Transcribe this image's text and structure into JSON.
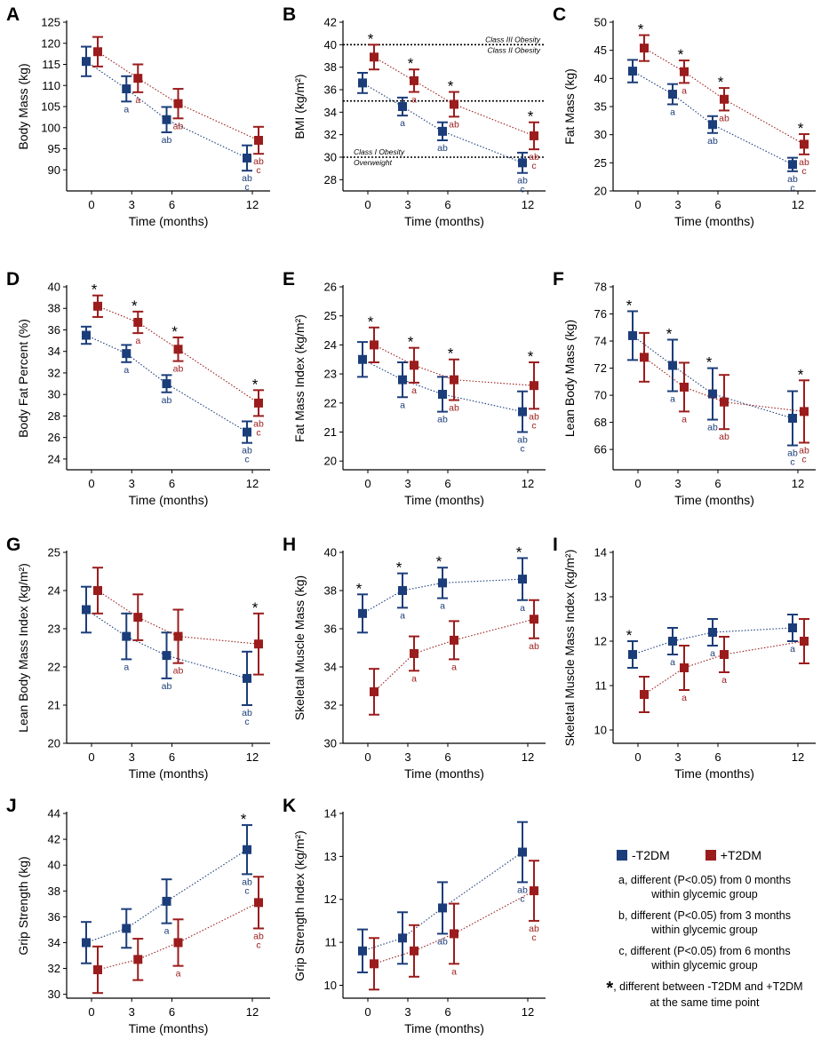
{
  "colors": {
    "noT2DM": "#1b3d7a",
    "T2DM": "#9b1c1c"
  },
  "legend": {
    "series": [
      "-T2DM",
      "+T2DM"
    ],
    "notes": [
      {
        "line1": "a, different (P<0.05) from 0 months",
        "line2": "within glycemic group"
      },
      {
        "line1": "b, different (P<0.05) from 3 months",
        "line2": "within glycemic group"
      },
      {
        "line1": "c, different (P<0.05) from 6 months",
        "line2": "within glycemic group"
      }
    ],
    "star_symbol": "*",
    "star_line1": ", different between -T2DM and +T2DM",
    "star_line2": "at the same time point"
  },
  "chart_data": [
    {
      "panel": "A",
      "type": "line",
      "xlabel": "Time (months)",
      "ylabel": "Body Mass (kg)",
      "x": [
        0,
        3,
        6,
        12
      ],
      "xticks": [
        "0",
        "3",
        "6",
        "12"
      ],
      "ylim": [
        85,
        125
      ],
      "yticks": [
        90,
        95,
        100,
        105,
        110,
        115,
        120,
        125
      ],
      "series": [
        {
          "name": "-T2DM",
          "values": [
            115.7,
            109.2,
            101.9,
            92.8
          ],
          "errors": [
            3.5,
            3.0,
            3.0,
            3.0
          ],
          "letters": [
            "",
            "a",
            "ab",
            "ab\nc"
          ],
          "stars": [
            false,
            false,
            false,
            false
          ]
        },
        {
          "name": "+T2DM",
          "values": [
            118.0,
            111.7,
            105.7,
            97.0
          ],
          "errors": [
            3.5,
            3.3,
            3.5,
            3.2
          ],
          "letters": [
            "",
            "a",
            "ab",
            "ab\nc"
          ],
          "stars": [
            false,
            false,
            false,
            false
          ]
        }
      ]
    },
    {
      "panel": "B",
      "type": "line",
      "xlabel": "Time (months)",
      "ylabel": "BMI (kg/m²)",
      "x": [
        0,
        3,
        6,
        12
      ],
      "xticks": [
        "0",
        "3",
        "6",
        "12"
      ],
      "ylim": [
        27,
        42
      ],
      "yticks": [
        28,
        30,
        32,
        34,
        36,
        38,
        40,
        42
      ],
      "reference_lines": [
        {
          "y": 40,
          "label_above": "Class III Obesity",
          "label_below": "Class II Obesity"
        },
        {
          "y": 35,
          "label_above": "",
          "label_below": ""
        },
        {
          "y": 30,
          "label_above": "Class I Obesity",
          "label_below": "Overweight"
        }
      ],
      "series": [
        {
          "name": "-T2DM",
          "values": [
            36.6,
            34.5,
            32.3,
            29.5
          ],
          "errors": [
            0.9,
            0.8,
            0.8,
            0.9
          ],
          "letters": [
            "",
            "a",
            "ab",
            "ab\nc"
          ],
          "stars": [
            true,
            true,
            true,
            true
          ]
        },
        {
          "name": "+T2DM",
          "values": [
            38.9,
            36.8,
            34.7,
            31.9
          ],
          "errors": [
            1.1,
            1.0,
            1.1,
            1.2
          ],
          "letters": [
            "",
            "a",
            "ab",
            "ab\nc"
          ],
          "stars": [
            false,
            false,
            false,
            false
          ]
        }
      ]
    },
    {
      "panel": "C",
      "type": "line",
      "xlabel": "Time (months)",
      "ylabel": "Fat Mass (kg)",
      "x": [
        0,
        3,
        6,
        12
      ],
      "xticks": [
        "0",
        "3",
        "6",
        "12"
      ],
      "ylim": [
        20,
        50
      ],
      "yticks": [
        20,
        25,
        30,
        35,
        40,
        45,
        50
      ],
      "series": [
        {
          "name": "-T2DM",
          "values": [
            41.3,
            37.2,
            31.8,
            24.7
          ],
          "errors": [
            2.0,
            1.8,
            1.5,
            1.2
          ],
          "letters": [
            "",
            "a",
            "ab",
            "ab\nc"
          ],
          "stars": [
            true,
            true,
            true,
            true
          ]
        },
        {
          "name": "+T2DM",
          "values": [
            45.4,
            41.2,
            36.3,
            28.3
          ],
          "errors": [
            2.3,
            2.0,
            2.0,
            1.8
          ],
          "letters": [
            "",
            "a",
            "ab",
            "ab\nc"
          ],
          "stars": [
            false,
            false,
            false,
            false
          ]
        }
      ]
    },
    {
      "panel": "D",
      "type": "line",
      "xlabel": "Time (months)",
      "ylabel": "Body Fat Percent (%)",
      "x": [
        0,
        3,
        6,
        12
      ],
      "xticks": [
        "0",
        "3",
        "6",
        "12"
      ],
      "ylim": [
        23,
        40
      ],
      "yticks": [
        24,
        26,
        28,
        30,
        32,
        34,
        36,
        38,
        40
      ],
      "series": [
        {
          "name": "-T2DM",
          "values": [
            35.5,
            33.8,
            31.0,
            26.5
          ],
          "errors": [
            0.8,
            0.8,
            0.8,
            1.0
          ],
          "letters": [
            "",
            "a",
            "ab",
            "ab\nc"
          ],
          "stars": [
            true,
            true,
            true,
            true
          ]
        },
        {
          "name": "+T2DM",
          "values": [
            38.2,
            36.7,
            34.2,
            29.2
          ],
          "errors": [
            1.0,
            1.0,
            1.1,
            1.2
          ],
          "letters": [
            "",
            "a",
            "ab",
            "ab\nc"
          ],
          "stars": [
            false,
            false,
            false,
            false
          ]
        }
      ]
    },
    {
      "panel": "E",
      "type": "line",
      "xlabel": "Time (months)",
      "ylabel": "Fat Mass Index (kg/m²)",
      "x": [
        0,
        3,
        6,
        12
      ],
      "xticks": [
        "0",
        "3",
        "6",
        "12"
      ],
      "ylim": [
        19.7,
        26
      ],
      "yticks": [
        20,
        21,
        22,
        23,
        24,
        25,
        26
      ],
      "series": [
        {
          "name": "-T2DM",
          "values": [
            23.5,
            22.8,
            22.3,
            21.7
          ],
          "errors": [
            0.6,
            0.6,
            0.6,
            0.7
          ],
          "letters": [
            "",
            "a",
            "ab",
            "ab\nc"
          ],
          "stars": [
            true,
            true,
            true,
            true
          ]
        },
        {
          "name": "+T2DM",
          "values": [
            24.0,
            23.3,
            22.8,
            22.6
          ],
          "errors": [
            0.6,
            0.6,
            0.7,
            0.8
          ],
          "letters": [
            "",
            "a",
            "ab",
            "ab\nc"
          ],
          "stars": [
            false,
            false,
            false,
            false
          ]
        }
      ]
    },
    {
      "panel": "F",
      "type": "line",
      "xlabel": "Time (months)",
      "ylabel": "Lean Body Mass (kg)",
      "x": [
        0,
        3,
        6,
        12
      ],
      "xticks": [
        "0",
        "3",
        "6",
        "12"
      ],
      "ylim": [
        64.5,
        78
      ],
      "yticks": [
        66,
        68,
        70,
        72,
        74,
        76,
        78
      ],
      "series": [
        {
          "name": "-T2DM",
          "values": [
            74.4,
            72.2,
            70.1,
            68.3
          ],
          "errors": [
            1.8,
            1.9,
            1.9,
            2.0
          ],
          "letters": [
            "",
            "a",
            "ab",
            "ab\nc"
          ],
          "stars": [
            true,
            true,
            true,
            true
          ]
        },
        {
          "name": "+T2DM",
          "values": [
            72.8,
            70.6,
            69.5,
            68.8
          ],
          "errors": [
            1.8,
            1.8,
            2.0,
            2.3
          ],
          "letters": [
            "",
            "a",
            "ab",
            "ab\nc"
          ],
          "stars": [
            false,
            false,
            false,
            false
          ]
        }
      ]
    },
    {
      "panel": "G",
      "type": "line",
      "xlabel": "Time (months)",
      "ylabel": "Lean Body Mass Index (kg/m²)",
      "x": [
        0,
        3,
        6,
        12
      ],
      "xticks": [
        "0",
        "3",
        "6",
        "12"
      ],
      "ylim": [
        20,
        25
      ],
      "yticks": [
        20,
        21,
        22,
        23,
        24,
        25
      ],
      "series": [
        {
          "name": "-T2DM",
          "values": [
            23.5,
            22.8,
            22.3,
            21.7
          ],
          "errors": [
            0.6,
            0.6,
            0.6,
            0.7
          ],
          "letters": [
            "",
            "a",
            "ab",
            "ab\nc"
          ],
          "stars": [
            false,
            false,
            false,
            false
          ]
        },
        {
          "name": "+T2DM",
          "values": [
            24.0,
            23.3,
            22.8,
            22.6
          ],
          "errors": [
            0.6,
            0.6,
            0.7,
            0.8
          ],
          "letters": [
            "",
            "",
            "ab",
            ""
          ],
          "stars": [
            false,
            false,
            false,
            true
          ]
        }
      ]
    },
    {
      "panel": "H",
      "type": "line",
      "xlabel": "Time (months)",
      "ylabel": "Skeletal Muscle Mass (kg)",
      "x": [
        0,
        3,
        6,
        12
      ],
      "xticks": [
        "0",
        "3",
        "6",
        "12"
      ],
      "ylim": [
        30,
        40
      ],
      "yticks": [
        30,
        32,
        34,
        36,
        38,
        40
      ],
      "series": [
        {
          "name": "-T2DM",
          "values": [
            36.8,
            38.0,
            38.4,
            38.6
          ],
          "errors": [
            1.0,
            0.9,
            0.8,
            1.1
          ],
          "letters": [
            "",
            "a",
            "a",
            "a"
          ],
          "stars": [
            true,
            true,
            true,
            true
          ]
        },
        {
          "name": "+T2DM",
          "values": [
            32.7,
            34.7,
            35.4,
            36.5
          ],
          "errors": [
            1.2,
            0.9,
            1.0,
            1.0
          ],
          "letters": [
            "",
            "a",
            "a",
            "ab"
          ],
          "stars": [
            false,
            false,
            false,
            false
          ]
        }
      ]
    },
    {
      "panel": "I",
      "type": "line",
      "xlabel": "Time (months)",
      "ylabel": "Skeletal Muscle Mass Index (kg/m²)",
      "x": [
        0,
        3,
        6,
        12
      ],
      "xticks": [
        "0",
        "3",
        "6",
        "12"
      ],
      "ylim": [
        9.7,
        14
      ],
      "yticks": [
        10,
        11,
        12,
        13,
        14
      ],
      "series": [
        {
          "name": "-T2DM",
          "values": [
            11.7,
            12.0,
            12.2,
            12.3
          ],
          "errors": [
            0.3,
            0.3,
            0.3,
            0.3
          ],
          "letters": [
            "",
            "a",
            "a",
            "a"
          ],
          "stars": [
            true,
            false,
            false,
            false
          ]
        },
        {
          "name": "+T2DM",
          "values": [
            10.8,
            11.4,
            11.7,
            12.0
          ],
          "errors": [
            0.4,
            0.5,
            0.4,
            0.5
          ],
          "letters": [
            "",
            "a",
            "a",
            ""
          ],
          "stars": [
            false,
            false,
            false,
            false
          ]
        }
      ]
    },
    {
      "panel": "J",
      "type": "line",
      "xlabel": "Time (months)",
      "ylabel": "Grip Strength (kg)",
      "x": [
        0,
        3,
        6,
        12
      ],
      "xticks": [
        "0",
        "3",
        "6",
        "12"
      ],
      "ylim": [
        29.7,
        44
      ],
      "yticks": [
        30,
        32,
        34,
        36,
        38,
        40,
        42,
        44
      ],
      "series": [
        {
          "name": "-T2DM",
          "values": [
            34.0,
            35.1,
            37.2,
            41.2
          ],
          "errors": [
            1.6,
            1.5,
            1.7,
            1.9
          ],
          "letters": [
            "",
            "",
            "a",
            "ab\nc"
          ],
          "stars": [
            false,
            false,
            false,
            true
          ]
        },
        {
          "name": "+T2DM",
          "values": [
            31.9,
            32.7,
            34.0,
            37.1
          ],
          "errors": [
            1.8,
            1.6,
            1.8,
            2.0
          ],
          "letters": [
            "",
            "",
            "a",
            "ab\nc"
          ],
          "stars": [
            false,
            false,
            false,
            false
          ]
        }
      ]
    },
    {
      "panel": "K",
      "type": "line",
      "xlabel": "Time (months)",
      "ylabel": "Grip Strength Index (kg/m²)",
      "x": [
        0,
        3,
        6,
        12
      ],
      "xticks": [
        "0",
        "3",
        "6",
        "12"
      ],
      "ylim": [
        9.7,
        14
      ],
      "yticks": [
        10,
        11,
        12,
        13,
        14
      ],
      "series": [
        {
          "name": "-T2DM",
          "values": [
            10.8,
            11.1,
            11.8,
            13.1
          ],
          "errors": [
            0.5,
            0.6,
            0.6,
            0.7
          ],
          "letters": [
            "",
            "",
            "ab",
            "ab\nc"
          ],
          "stars": [
            false,
            false,
            false,
            false
          ]
        },
        {
          "name": "+T2DM",
          "values": [
            10.5,
            10.8,
            11.2,
            12.2
          ],
          "errors": [
            0.6,
            0.6,
            0.7,
            0.7
          ],
          "letters": [
            "",
            "",
            "a",
            "ab\nc"
          ],
          "stars": [
            false,
            false,
            false,
            false
          ]
        }
      ]
    }
  ]
}
